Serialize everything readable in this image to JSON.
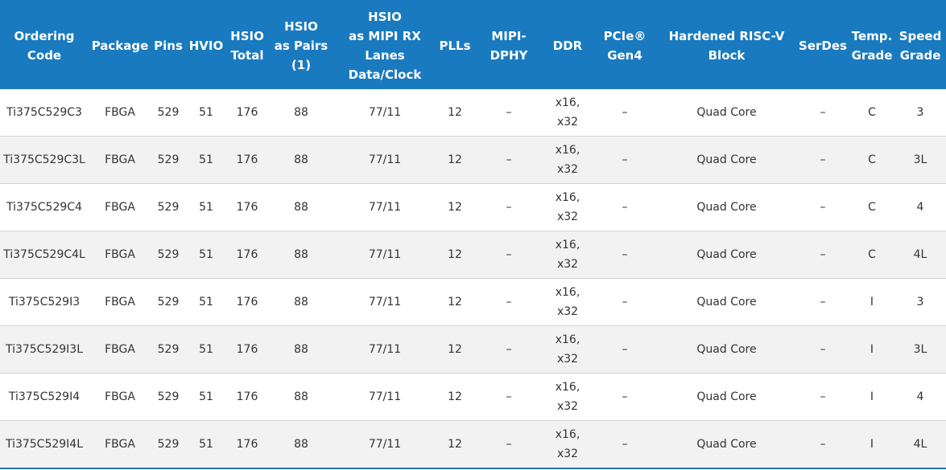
{
  "table": {
    "headers": [
      "Ordering\nCode",
      "Package",
      "Pins",
      "HVIO",
      "HSIO\nTotal",
      "HSIO\nas Pairs\n(1)",
      "HSIO\nas MIPI RX\nLanes\nData/Clock",
      "PLLs",
      "MIPI-\nDPHY",
      "DDR",
      "PCIe®\nGen4",
      "Hardened RISC-V\nBlock",
      "SerDes",
      "Temp.\nGrade",
      "Speed\nGrade"
    ],
    "rows": [
      [
        "Ti375C529C3",
        "FBGA",
        "529",
        "51",
        "176",
        "88",
        "77/11",
        "12",
        "–",
        "x16,\nx32",
        "–",
        "Quad Core",
        "–",
        "C",
        "3"
      ],
      [
        "Ti375C529C3L",
        "FBGA",
        "529",
        "51",
        "176",
        "88",
        "77/11",
        "12",
        "–",
        "x16,\nx32",
        "–",
        "Quad Core",
        "–",
        "C",
        "3L"
      ],
      [
        "Ti375C529C4",
        "FBGA",
        "529",
        "51",
        "176",
        "88",
        "77/11",
        "12",
        "–",
        "x16,\nx32",
        "–",
        "Quad Core",
        "–",
        "C",
        "4"
      ],
      [
        "Ti375C529C4L",
        "FBGA",
        "529",
        "51",
        "176",
        "88",
        "77/11",
        "12",
        "–",
        "x16,\nx32",
        "–",
        "Quad Core",
        "–",
        "C",
        "4L"
      ],
      [
        "Ti375C529I3",
        "FBGA",
        "529",
        "51",
        "176",
        "88",
        "77/11",
        "12",
        "–",
        "x16,\nx32",
        "–",
        "Quad Core",
        "–",
        "I",
        "3"
      ],
      [
        "Ti375C529I3L",
        "FBGA",
        "529",
        "51",
        "176",
        "88",
        "77/11",
        "12",
        "–",
        "x16,\nx32",
        "–",
        "Quad Core",
        "–",
        "I",
        "3L"
      ],
      [
        "Ti375C529I4",
        "FBGA",
        "529",
        "51",
        "176",
        "88",
        "77/11",
        "12",
        "–",
        "x16,\nx32",
        "–",
        "Quad Core",
        "–",
        "I",
        "4"
      ],
      [
        "Ti375C529I4L",
        "FBGA",
        "529",
        "51",
        "176",
        "88",
        "77/11",
        "12",
        "–",
        "x16,\nx32",
        "–",
        "Quad Core",
        "–",
        "I",
        "4L"
      ]
    ]
  },
  "colors": {
    "header_bg": "#1a7abf",
    "header_text": "#ffffff",
    "row_alt_bg": "#f2f2f2",
    "body_text": "#333333"
  }
}
